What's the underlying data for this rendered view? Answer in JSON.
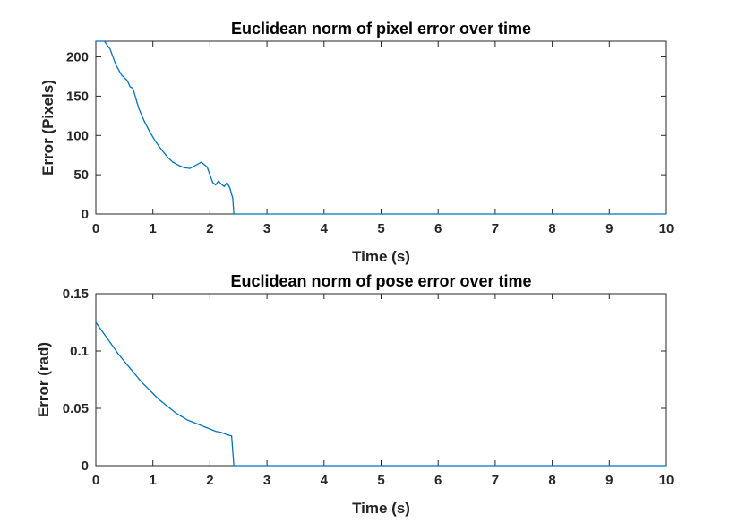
{
  "chart_data": [
    {
      "type": "line",
      "title": "Euclidean norm of pixel error over time",
      "xlabel": "Time (s)",
      "ylabel": "Error (Pixels)",
      "xlim": [
        0,
        10
      ],
      "ylim": [
        0,
        220
      ],
      "xticks": [
        "0",
        "1",
        "2",
        "3",
        "4",
        "5",
        "6",
        "7",
        "8",
        "9",
        "10"
      ],
      "yticks": [
        "0",
        "50",
        "100",
        "150",
        "200"
      ],
      "grid": false,
      "color": "#0072BD",
      "series": [
        {
          "x": [
            0,
            0.15,
            0.25,
            0.35,
            0.45,
            0.55,
            0.6,
            0.65,
            0.75,
            0.85,
            0.95,
            1.05,
            1.15,
            1.25,
            1.35,
            1.45,
            1.55,
            1.65,
            1.75,
            1.85,
            1.95,
            2.0,
            2.05,
            2.1,
            2.15,
            2.2,
            2.25,
            2.3,
            2.35,
            2.4,
            2.42,
            2.6,
            3,
            4,
            5,
            6,
            7,
            8,
            9,
            10
          ],
          "y": [
            220,
            220,
            210,
            190,
            177,
            170,
            162,
            160,
            135,
            118,
            104,
            92,
            82,
            73,
            66,
            62,
            59,
            58,
            62,
            66,
            60,
            50,
            40,
            37,
            42,
            38,
            35,
            40,
            33,
            20,
            0,
            0,
            0,
            0,
            0,
            0,
            0,
            0,
            0,
            0
          ]
        }
      ]
    },
    {
      "type": "line",
      "title": "Euclidean norm of pose error over time",
      "xlabel": "Time (s)",
      "ylabel": "Error (rad)",
      "xlim": [
        0,
        10
      ],
      "ylim": [
        0,
        0.15
      ],
      "xticks": [
        "0",
        "1",
        "2",
        "3",
        "4",
        "5",
        "6",
        "7",
        "8",
        "9",
        "10"
      ],
      "yticks": [
        "0",
        "0.05",
        "0.1",
        "0.15"
      ],
      "grid": false,
      "color": "#0072BD",
      "series": [
        {
          "x": [
            0,
            0.1,
            0.2,
            0.3,
            0.4,
            0.5,
            0.6,
            0.7,
            0.8,
            0.9,
            1.0,
            1.1,
            1.2,
            1.3,
            1.4,
            1.5,
            1.6,
            1.7,
            1.8,
            1.9,
            2.0,
            2.1,
            2.2,
            2.3,
            2.38,
            2.42,
            2.6,
            3,
            4,
            5,
            6,
            7,
            8,
            9,
            10
          ],
          "y": [
            0.125,
            0.118,
            0.111,
            0.104,
            0.097,
            0.091,
            0.085,
            0.079,
            0.073,
            0.068,
            0.063,
            0.058,
            0.054,
            0.05,
            0.046,
            0.043,
            0.04,
            0.038,
            0.036,
            0.034,
            0.032,
            0.03,
            0.029,
            0.027,
            0.026,
            0,
            0,
            0,
            0,
            0,
            0,
            0,
            0,
            0,
            0
          ]
        }
      ]
    }
  ]
}
